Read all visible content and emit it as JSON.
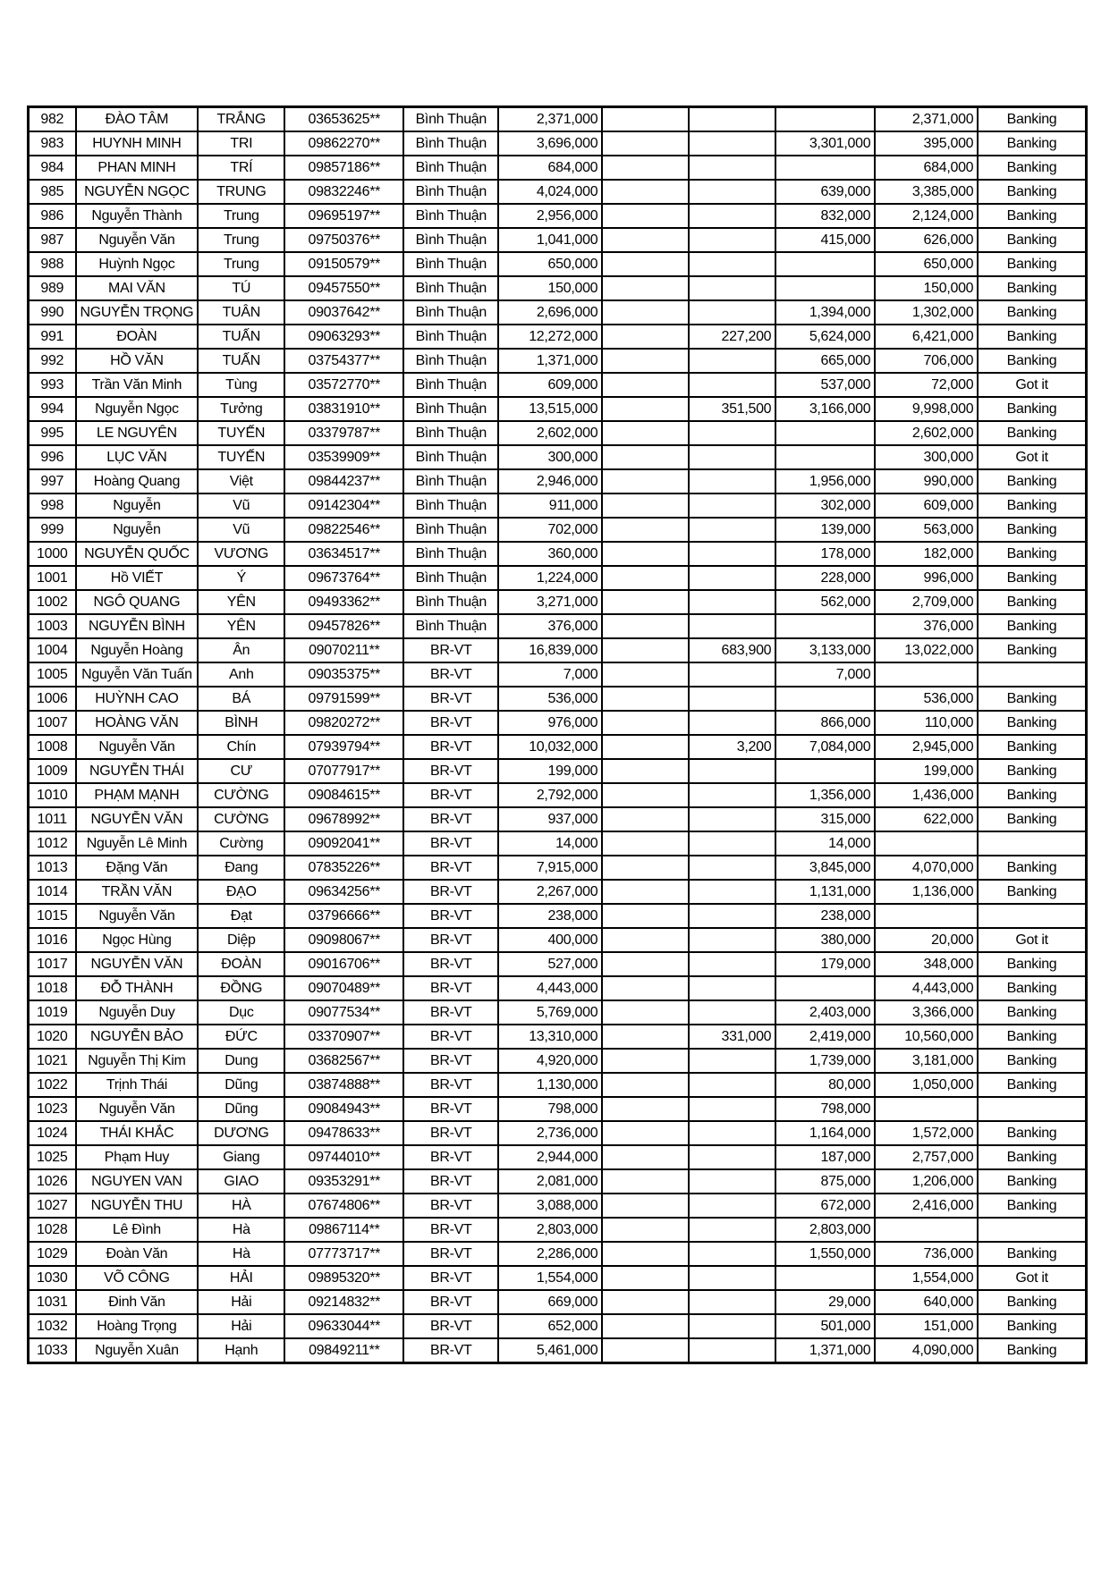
{
  "table": {
    "status_values": [
      "Banking",
      "Got it"
    ],
    "provinces": [
      "Bình Thuận",
      "BR-VT"
    ],
    "rows": [
      [
        "982",
        "ĐÀO TÂM",
        "TRẮNG",
        "03653625**",
        "Bình Thuận",
        "2,371,000",
        "",
        "",
        "",
        "2,371,000",
        "Banking"
      ],
      [
        "983",
        "HUYNH MINH",
        "TRI",
        "09862270**",
        "Bình Thuận",
        "3,696,000",
        "",
        "",
        "3,301,000",
        "395,000",
        "Banking"
      ],
      [
        "984",
        "PHAN MINH",
        "TRÍ",
        "09857186**",
        "Bình Thuận",
        "684,000",
        "",
        "",
        "",
        "684,000",
        "Banking"
      ],
      [
        "985",
        "NGUYỄN NGỌC",
        "TRUNG",
        "09832246**",
        "Bình Thuận",
        "4,024,000",
        "",
        "",
        "639,000",
        "3,385,000",
        "Banking"
      ],
      [
        "986",
        "Nguyễn Thành",
        "Trung",
        "09695197**",
        "Bình Thuận",
        "2,956,000",
        "",
        "",
        "832,000",
        "2,124,000",
        "Banking"
      ],
      [
        "987",
        "Nguyễn Văn",
        "Trung",
        "09750376**",
        "Bình Thuận",
        "1,041,000",
        "",
        "",
        "415,000",
        "626,000",
        "Banking"
      ],
      [
        "988",
        "Huỳnh Ngọc",
        "Trung",
        "09150579**",
        "Bình Thuận",
        "650,000",
        "",
        "",
        "",
        "650,000",
        "Banking"
      ],
      [
        "989",
        "MAI VĂN",
        "TÚ",
        "09457550**",
        "Bình Thuận",
        "150,000",
        "",
        "",
        "",
        "150,000",
        "Banking"
      ],
      [
        "990",
        "NGUYỄN TRỌNG",
        "TUÂN",
        "09037642**",
        "Bình Thuận",
        "2,696,000",
        "",
        "",
        "1,394,000",
        "1,302,000",
        "Banking"
      ],
      [
        "991",
        "ĐOÀN",
        "TUẤN",
        "09063293**",
        "Bình Thuận",
        "12,272,000",
        "",
        "227,200",
        "5,624,000",
        "6,421,000",
        "Banking"
      ],
      [
        "992",
        "HỒ VĂN",
        "TUẤN",
        "03754377**",
        "Bình Thuận",
        "1,371,000",
        "",
        "",
        "665,000",
        "706,000",
        "Banking"
      ],
      [
        "993",
        "Trần Văn Minh",
        "Tùng",
        "03572770**",
        "Bình Thuận",
        "609,000",
        "",
        "",
        "537,000",
        "72,000",
        "Got it"
      ],
      [
        "994",
        "Nguyễn Ngọc",
        "Tưởng",
        "03831910**",
        "Bình Thuận",
        "13,515,000",
        "",
        "351,500",
        "3,166,000",
        "9,998,000",
        "Banking"
      ],
      [
        "995",
        "LE NGUYÊN",
        "TUYẾN",
        "03379787**",
        "Bình Thuận",
        "2,602,000",
        "",
        "",
        "",
        "2,602,000",
        "Banking"
      ],
      [
        "996",
        "LỤC VĂN",
        "TUYẾN",
        "03539909**",
        "Bình Thuận",
        "300,000",
        "",
        "",
        "",
        "300,000",
        "Got it"
      ],
      [
        "997",
        "Hoàng Quang",
        "Việt",
        "09844237**",
        "Bình Thuận",
        "2,946,000",
        "",
        "",
        "1,956,000",
        "990,000",
        "Banking"
      ],
      [
        "998",
        "Nguyễn",
        "Vũ",
        "09142304**",
        "Bình Thuận",
        "911,000",
        "",
        "",
        "302,000",
        "609,000",
        "Banking"
      ],
      [
        "999",
        "Nguyễn",
        "Vũ",
        "09822546**",
        "Bình Thuận",
        "702,000",
        "",
        "",
        "139,000",
        "563,000",
        "Banking"
      ],
      [
        "1000",
        "NGUYỄN QUỐC",
        "VƯƠNG",
        "03634517**",
        "Bình Thuận",
        "360,000",
        "",
        "",
        "178,000",
        "182,000",
        "Banking"
      ],
      [
        "1001",
        "Hồ VIẾT",
        "Ý",
        "09673764**",
        "Bình Thuận",
        "1,224,000",
        "",
        "",
        "228,000",
        "996,000",
        "Banking"
      ],
      [
        "1002",
        "NGÔ QUANG",
        "YÊN",
        "09493362**",
        "Bình Thuận",
        "3,271,000",
        "",
        "",
        "562,000",
        "2,709,000",
        "Banking"
      ],
      [
        "1003",
        "NGUYỄN BÌNH",
        "YÊN",
        "09457826**",
        "Bình Thuận",
        "376,000",
        "",
        "",
        "",
        "376,000",
        "Banking"
      ],
      [
        "1004",
        "Nguyễn Hoàng",
        "Ân",
        "09070211**",
        "BR-VT",
        "16,839,000",
        "",
        "683,900",
        "3,133,000",
        "13,022,000",
        "Banking"
      ],
      [
        "1005",
        "Nguyễn Văn Tuấn",
        "Anh",
        "09035375**",
        "BR-VT",
        "7,000",
        "",
        "",
        "7,000",
        "",
        ""
      ],
      [
        "1006",
        "HUỲNH CAO",
        "BÁ",
        "09791599**",
        "BR-VT",
        "536,000",
        "",
        "",
        "",
        "536,000",
        "Banking"
      ],
      [
        "1007",
        "HOÀNG VĂN",
        "BÌNH",
        "09820272**",
        "BR-VT",
        "976,000",
        "",
        "",
        "866,000",
        "110,000",
        "Banking"
      ],
      [
        "1008",
        "Nguyễn Văn",
        "Chín",
        "07939794**",
        "BR-VT",
        "10,032,000",
        "",
        "3,200",
        "7,084,000",
        "2,945,000",
        "Banking"
      ],
      [
        "1009",
        "NGUYỄN THÁI",
        "CƯ",
        "07077917**",
        "BR-VT",
        "199,000",
        "",
        "",
        "",
        "199,000",
        "Banking"
      ],
      [
        "1010",
        "PHẠM MẠNH",
        "CƯỜNG",
        "09084615**",
        "BR-VT",
        "2,792,000",
        "",
        "",
        "1,356,000",
        "1,436,000",
        "Banking"
      ],
      [
        "1011",
        "NGUYỄN VĂN",
        "CƯỜNG",
        "09678992**",
        "BR-VT",
        "937,000",
        "",
        "",
        "315,000",
        "622,000",
        "Banking"
      ],
      [
        "1012",
        "Nguyễn Lê Minh",
        "Cường",
        "09092041**",
        "BR-VT",
        "14,000",
        "",
        "",
        "14,000",
        "",
        ""
      ],
      [
        "1013",
        "Đặng Văn",
        "Đang",
        "07835226**",
        "BR-VT",
        "7,915,000",
        "",
        "",
        "3,845,000",
        "4,070,000",
        "Banking"
      ],
      [
        "1014",
        "TRẦN VĂN",
        "ĐẠO",
        "09634256**",
        "BR-VT",
        "2,267,000",
        "",
        "",
        "1,131,000",
        "1,136,000",
        "Banking"
      ],
      [
        "1015",
        "Nguyễn Văn",
        "Đạt",
        "03796666**",
        "BR-VT",
        "238,000",
        "",
        "",
        "238,000",
        "",
        ""
      ],
      [
        "1016",
        "Ngọc Hùng",
        "Diệp",
        "09098067**",
        "BR-VT",
        "400,000",
        "",
        "",
        "380,000",
        "20,000",
        "Got it"
      ],
      [
        "1017",
        "NGUYỄN VĂN",
        "ĐOÀN",
        "09016706**",
        "BR-VT",
        "527,000",
        "",
        "",
        "179,000",
        "348,000",
        "Banking"
      ],
      [
        "1018",
        "ĐỖ THÀNH",
        "ĐỒNG",
        "09070489**",
        "BR-VT",
        "4,443,000",
        "",
        "",
        "",
        "4,443,000",
        "Banking"
      ],
      [
        "1019",
        "Nguyễn Duy",
        "Dục",
        "09077534**",
        "BR-VT",
        "5,769,000",
        "",
        "",
        "2,403,000",
        "3,366,000",
        "Banking"
      ],
      [
        "1020",
        "NGUYỄN BẢO",
        "ĐỨC",
        "03370907**",
        "BR-VT",
        "13,310,000",
        "",
        "331,000",
        "2,419,000",
        "10,560,000",
        "Banking"
      ],
      [
        "1021",
        "Nguyễn Thị Kim",
        "Dung",
        "03682567**",
        "BR-VT",
        "4,920,000",
        "",
        "",
        "1,739,000",
        "3,181,000",
        "Banking"
      ],
      [
        "1022",
        "Trịnh Thái",
        "Dũng",
        "03874888**",
        "BR-VT",
        "1,130,000",
        "",
        "",
        "80,000",
        "1,050,000",
        "Banking"
      ],
      [
        "1023",
        "Nguyễn Văn",
        "Dũng",
        "09084943**",
        "BR-VT",
        "798,000",
        "",
        "",
        "798,000",
        "",
        ""
      ],
      [
        "1024",
        "THÁI KHẮC",
        "DƯƠNG",
        "09478633**",
        "BR-VT",
        "2,736,000",
        "",
        "",
        "1,164,000",
        "1,572,000",
        "Banking"
      ],
      [
        "1025",
        "Phạm Huy",
        "Giang",
        "09744010**",
        "BR-VT",
        "2,944,000",
        "",
        "",
        "187,000",
        "2,757,000",
        "Banking"
      ],
      [
        "1026",
        "NGUYEN VAN",
        "GIAO",
        "09353291**",
        "BR-VT",
        "2,081,000",
        "",
        "",
        "875,000",
        "1,206,000",
        "Banking"
      ],
      [
        "1027",
        "NGUYỄN THU",
        "HÀ",
        "07674806**",
        "BR-VT",
        "3,088,000",
        "",
        "",
        "672,000",
        "2,416,000",
        "Banking"
      ],
      [
        "1028",
        "Lê Đình",
        "Hà",
        "09867114**",
        "BR-VT",
        "2,803,000",
        "",
        "",
        "2,803,000",
        "",
        ""
      ],
      [
        "1029",
        "Đoàn Văn",
        "Hà",
        "07773717**",
        "BR-VT",
        "2,286,000",
        "",
        "",
        "1,550,000",
        "736,000",
        "Banking"
      ],
      [
        "1030",
        "VÕ CÔNG",
        "HẢI",
        "09895320**",
        "BR-VT",
        "1,554,000",
        "",
        "",
        "",
        "1,554,000",
        "Got it"
      ],
      [
        "1031",
        "Đinh Văn",
        "Hải",
        "09214832**",
        "BR-VT",
        "669,000",
        "",
        "",
        "29,000",
        "640,000",
        "Banking"
      ],
      [
        "1032",
        "Hoàng Trọng",
        "Hải",
        "09633044**",
        "BR-VT",
        "652,000",
        "",
        "",
        "501,000",
        "151,000",
        "Banking"
      ],
      [
        "1033",
        "Nguyễn Xuân",
        "Hạnh",
        "09849211**",
        "BR-VT",
        "5,461,000",
        "",
        "",
        "1,371,000",
        "4,090,000",
        "Banking"
      ]
    ]
  }
}
